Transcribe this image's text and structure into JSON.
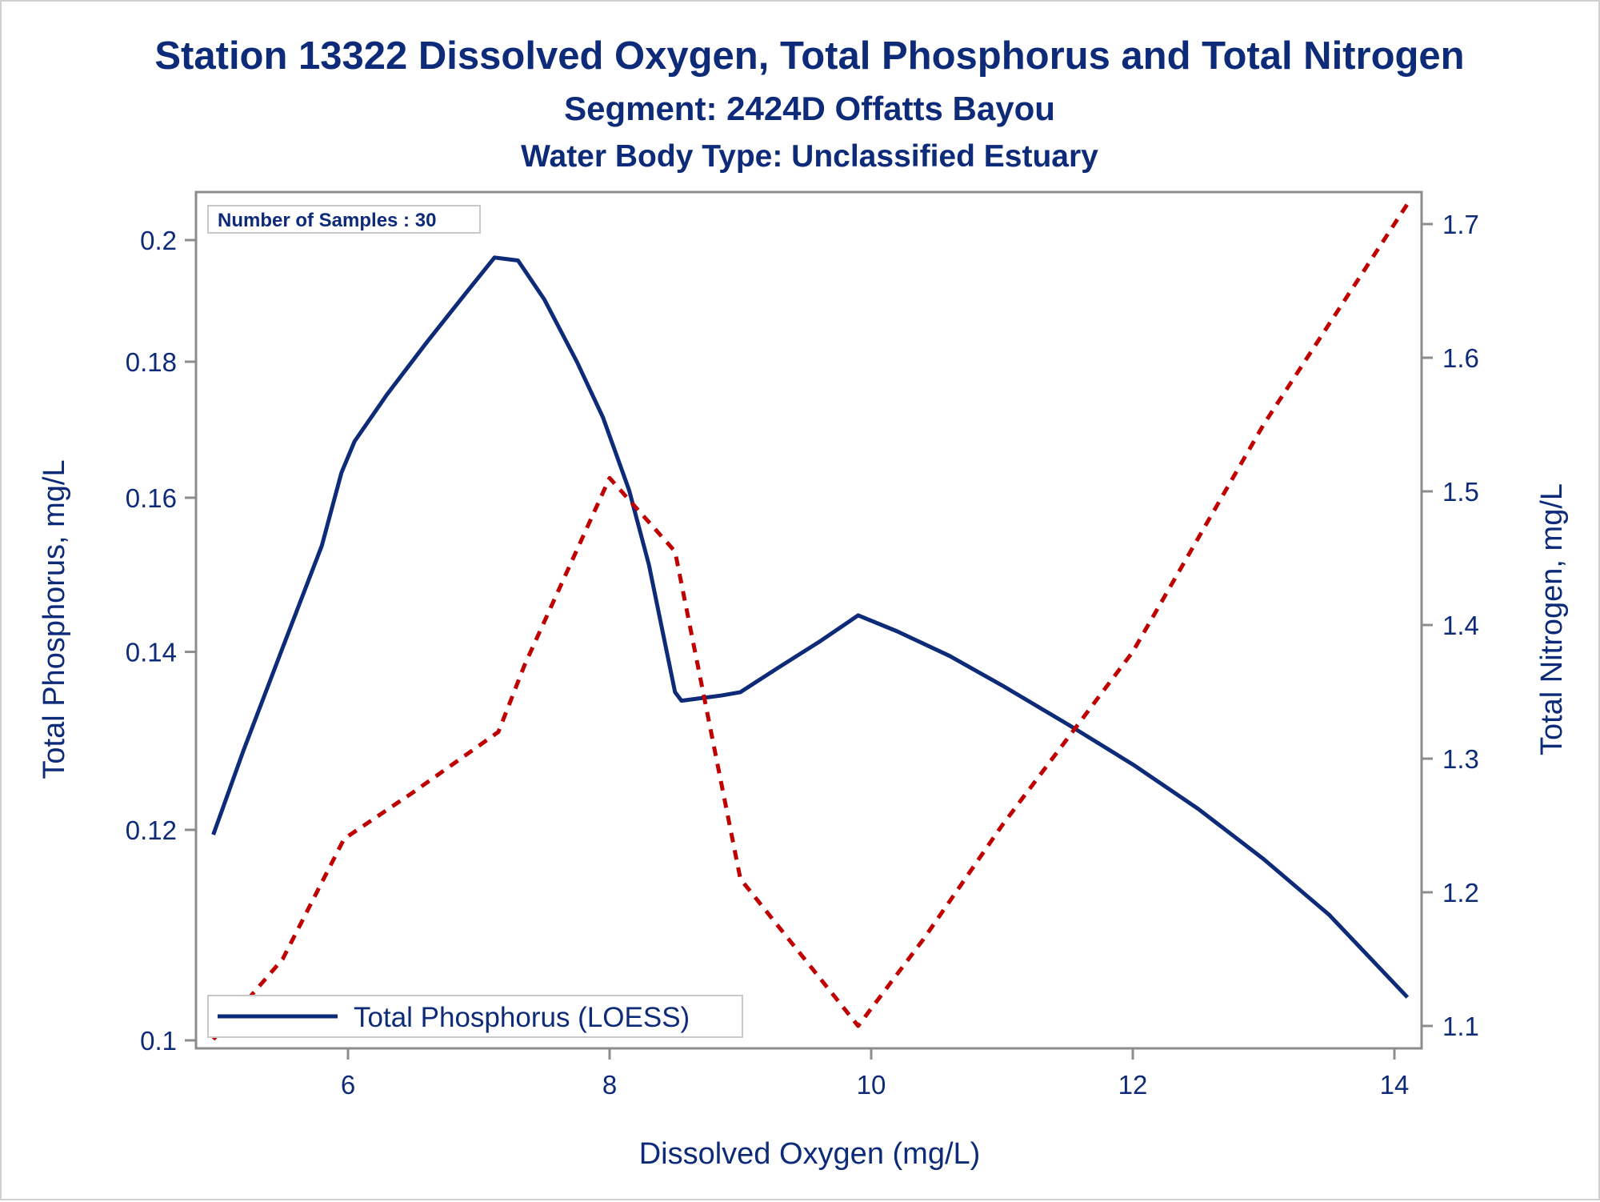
{
  "titles": {
    "line1": "Station 13322  Dissolved Oxygen, Total Phosphorus and Total Nitrogen",
    "line2": "Segment: 2424D  Offatts Bayou",
    "line3": "Water Body Type: Unclassified Estuary"
  },
  "inset_label": "Number of Samples : 30",
  "legend_label": "Total Phosphorus (LOESS)",
  "colors": {
    "phosphorus": "#0d2b78",
    "nitrogen": "#c00000",
    "text": "#0d2b78",
    "axis": "#8c8c8c"
  },
  "chart_data": {
    "type": "line",
    "xlabel": "Dissolved Oxygen (mg/L)",
    "ylabel_left": "Total Phosphorus, mg/L",
    "ylabel_right": "Total Nitrogen, mg/L",
    "x_ticks": [
      6,
      8,
      10,
      12,
      14
    ],
    "y_left_ticks": [
      0.1,
      0.12,
      0.14,
      0.16,
      0.18,
      0.2
    ],
    "y_right_ticks": [
      1.1,
      1.2,
      1.3,
      1.4,
      1.5,
      1.6,
      1.7
    ],
    "xlim": [
      4.9,
      14.2
    ],
    "series": [
      {
        "name": "Total Phosphorus (LOESS)",
        "axis": "left",
        "style": "solid",
        "points": [
          [
            4.97,
            0.1195
          ],
          [
            5.2,
            0.1285
          ],
          [
            5.5,
            0.1405
          ],
          [
            5.8,
            0.1535
          ],
          [
            5.95,
            0.1635
          ],
          [
            6.05,
            0.168
          ],
          [
            6.3,
            0.175
          ],
          [
            6.6,
            0.183
          ],
          [
            6.9,
            0.191
          ],
          [
            7.12,
            0.197
          ],
          [
            7.3,
            0.1965
          ],
          [
            7.5,
            0.19
          ],
          [
            7.75,
            0.18
          ],
          [
            7.95,
            0.1715
          ],
          [
            8.15,
            0.161
          ],
          [
            8.3,
            0.151
          ],
          [
            8.45,
            0.139
          ],
          [
            8.5,
            0.1352
          ],
          [
            8.55,
            0.1342
          ],
          [
            8.7,
            0.1345
          ],
          [
            8.85,
            0.1348
          ],
          [
            9.0,
            0.1352
          ],
          [
            9.3,
            0.1382
          ],
          [
            9.6,
            0.1412
          ],
          [
            9.9,
            0.1445
          ],
          [
            10.2,
            0.1425
          ],
          [
            10.6,
            0.1395
          ],
          [
            11.0,
            0.136
          ],
          [
            11.5,
            0.1315
          ],
          [
            12.0,
            0.127
          ],
          [
            12.5,
            0.1222
          ],
          [
            13.0,
            0.117
          ],
          [
            13.5,
            0.1115
          ],
          [
            14.1,
            0.1038
          ]
        ]
      },
      {
        "name": "",
        "axis": "right",
        "style": "dashed",
        "points": [
          [
            4.97,
            1.09
          ],
          [
            5.5,
            1.15
          ],
          [
            5.97,
            1.24
          ],
          [
            6.5,
            1.275
          ],
          [
            7.15,
            1.32
          ],
          [
            7.35,
            1.37
          ],
          [
            8.0,
            1.51
          ],
          [
            8.5,
            1.455
          ],
          [
            9.0,
            1.21
          ],
          [
            9.9,
            1.1
          ],
          [
            10.4,
            1.165
          ],
          [
            11.0,
            1.25
          ],
          [
            12.0,
            1.38
          ],
          [
            13.0,
            1.55
          ],
          [
            14.1,
            1.715
          ]
        ]
      }
    ]
  }
}
